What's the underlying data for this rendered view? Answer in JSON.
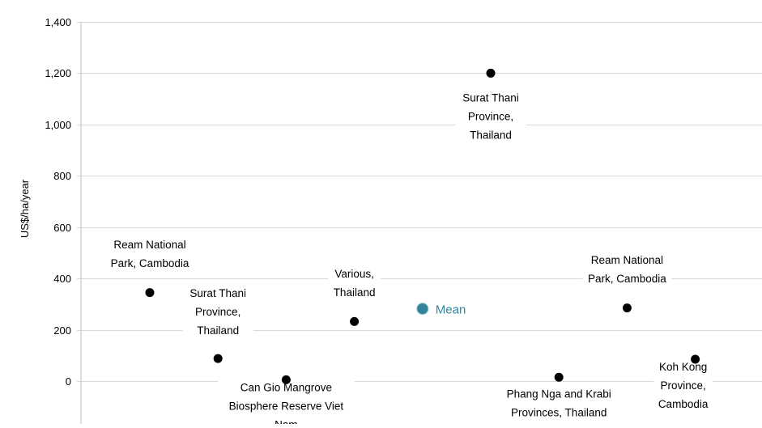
{
  "chart_data": {
    "type": "scatter",
    "title": "",
    "xlabel": "",
    "ylabel": "US$/ha/year",
    "ylim": [
      0,
      1400
    ],
    "yticks": [
      0,
      200,
      400,
      600,
      800,
      1000,
      1200,
      1400
    ],
    "ytick_labels": [
      "0",
      "200",
      "400",
      "600",
      "800",
      "1,000",
      "1,200",
      "1,400"
    ],
    "grid": "horizontal",
    "x": [
      1,
      2,
      3,
      4,
      5,
      6,
      7,
      8,
      9
    ],
    "series": [
      {
        "color": "#000000",
        "points": [
          {
            "x": 1,
            "y": 345,
            "label": [
              "Ream National",
              "Park, Cambodia"
            ]
          },
          {
            "x": 2,
            "y": 88,
            "label": [
              "Surat Thani",
              "Province,",
              "Thailand"
            ]
          },
          {
            "x": 3,
            "y": 5,
            "label": [
              "Can Gio Mangrove",
              "Biosphere Reserve Viet",
              "Nam"
            ]
          },
          {
            "x": 4,
            "y": 232,
            "label": [
              "Various,",
              "Thailand"
            ]
          },
          {
            "x": 6,
            "y": 1200,
            "label": [
              "Surat Thani",
              "Province,",
              "Thailand"
            ]
          },
          {
            "x": 7,
            "y": 15,
            "label": [
              "Phang Nga and Krabi",
              "Provinces, Thailand"
            ]
          },
          {
            "x": 8,
            "y": 285,
            "label": [
              "Ream National",
              "Park, Cambodia"
            ]
          },
          {
            "x": 9,
            "y": 85,
            "label": [
              "Koh Kong",
              "Province,",
              "Cambodia"
            ]
          }
        ]
      },
      {
        "name": "Mean",
        "color": "#31849b",
        "points": [
          {
            "x": 5,
            "y": 282,
            "label": [
              "Mean"
            ]
          }
        ]
      }
    ]
  }
}
